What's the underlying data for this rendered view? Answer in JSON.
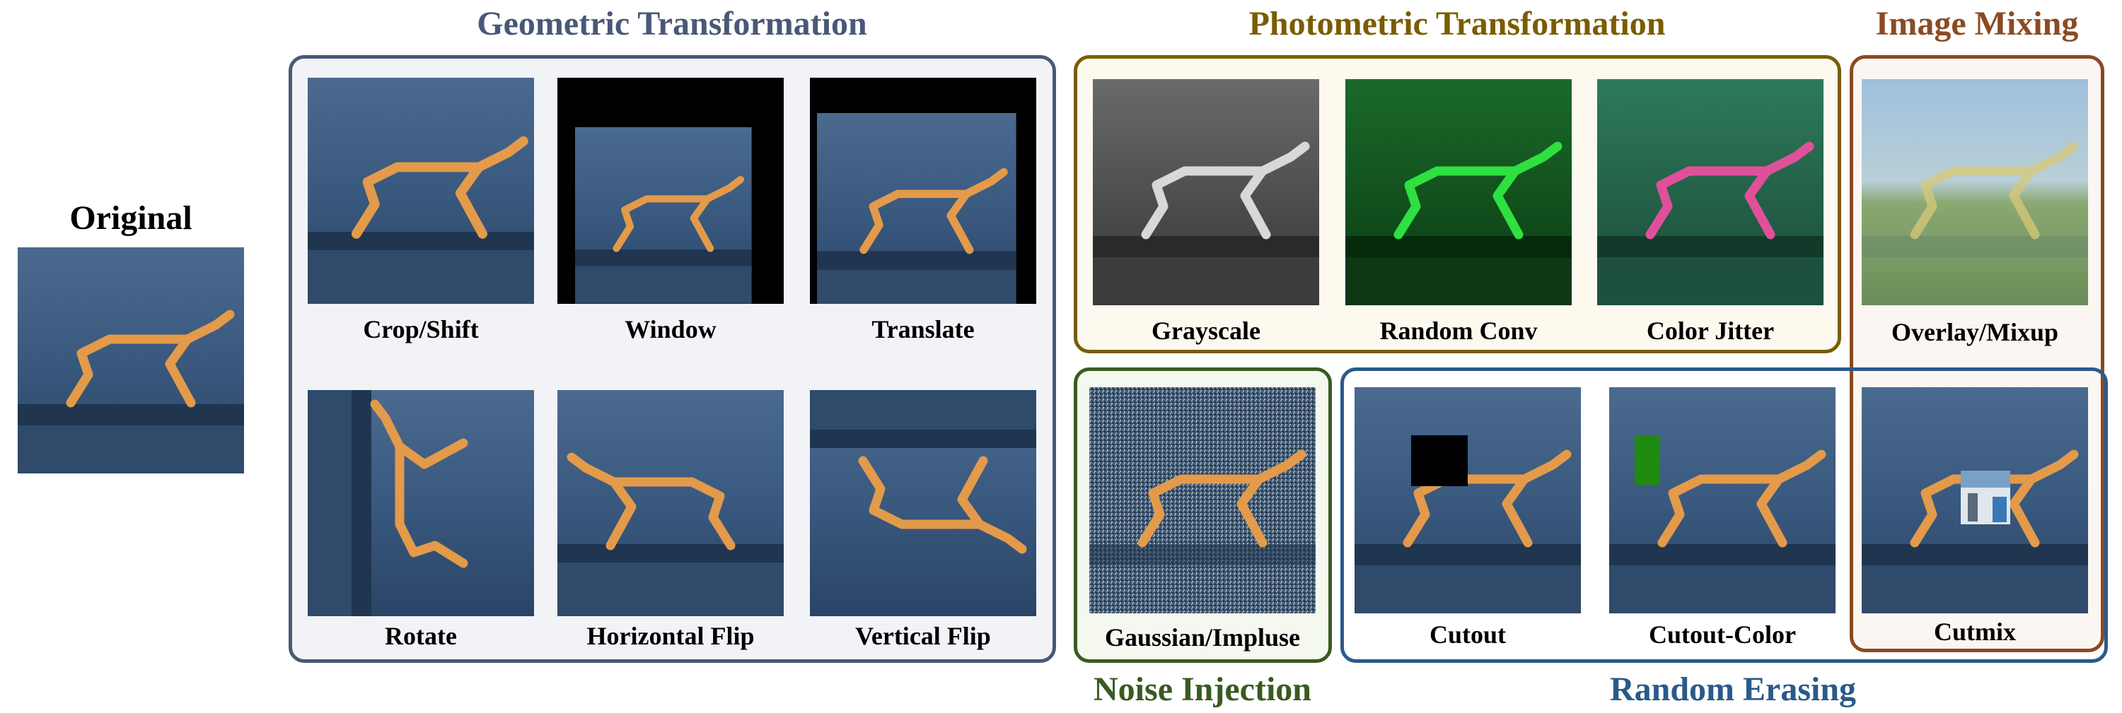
{
  "original": {
    "label": "Original"
  },
  "groups": {
    "geometric": {
      "title": "Geometric Transformation",
      "color": "#4a5878"
    },
    "photometric": {
      "title": "Photometric Transformation",
      "color": "#7a5c00"
    },
    "mixing": {
      "title": "Image Mixing",
      "color": "#8b4a22"
    },
    "noise": {
      "title": "Noise Injection",
      "color": "#3a5a22"
    },
    "erasing": {
      "title": "Random Erasing",
      "color": "#2a5a8a"
    }
  },
  "augmentations": [
    {
      "label": "Crop/Shift",
      "icon": "crop-shift-thumbnail"
    },
    {
      "label": "Window",
      "icon": "window-thumbnail"
    },
    {
      "label": "Translate",
      "icon": "translate-thumbnail"
    },
    {
      "label": "Rotate",
      "icon": "rotate-thumbnail"
    },
    {
      "label": "Horizontal Flip",
      "icon": "horizontal-flip-thumbnail"
    },
    {
      "label": "Vertical Flip",
      "icon": "vertical-flip-thumbnail"
    },
    {
      "label": "Grayscale",
      "icon": "grayscale-thumbnail"
    },
    {
      "label": "Random Conv",
      "icon": "random-conv-thumbnail"
    },
    {
      "label": "Color Jitter",
      "icon": "color-jitter-thumbnail"
    },
    {
      "label": "Overlay/Mixup",
      "icon": "overlay-mixup-thumbnail"
    },
    {
      "label": "Gaussian/Impluse",
      "icon": "gaussian-impulse-thumbnail"
    },
    {
      "label": "Cutout",
      "icon": "cutout-thumbnail"
    },
    {
      "label": "Cutout-Color",
      "icon": "cutout-color-thumbnail"
    },
    {
      "label": "Cutmix",
      "icon": "cutmix-thumbnail"
    }
  ]
}
